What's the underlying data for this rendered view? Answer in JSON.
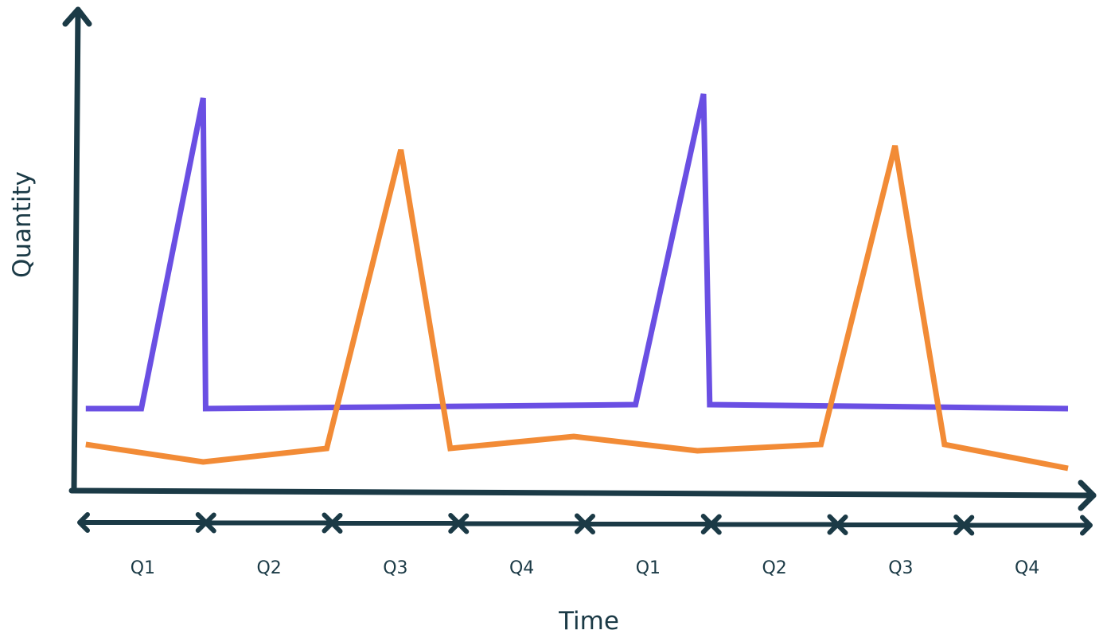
{
  "chart_data": {
    "type": "line",
    "title": "",
    "xlabel": "Time",
    "ylabel": "Quantity",
    "categories": [
      "Q1",
      "Q2",
      "Q3",
      "Q4",
      "Q1",
      "Q2",
      "Q3",
      "Q4"
    ],
    "x": [
      0,
      0.5,
      1,
      1.5,
      2,
      2.5,
      3,
      3.5,
      4,
      4.5,
      5,
      5.5,
      6,
      6.5,
      7,
      7.5,
      8
    ],
    "x_range": [
      0,
      8
    ],
    "y_range": [
      0,
      100
    ],
    "grid": false,
    "legend": "none",
    "series": [
      {
        "color": "#6a4fe3",
        "points": [
          [
            0.05,
            21
          ],
          [
            0.5,
            21
          ],
          [
            1.0,
            99
          ],
          [
            1.02,
            21
          ],
          [
            2.5,
            21.4
          ],
          [
            4.5,
            22
          ],
          [
            5.05,
            100
          ],
          [
            5.1,
            22
          ],
          [
            8.0,
            21
          ]
        ]
      },
      {
        "color": "#f28b36",
        "points": [
          [
            0.05,
            12
          ],
          [
            1.0,
            7.6
          ],
          [
            2.0,
            11
          ],
          [
            2.6,
            86
          ],
          [
            3.0,
            11
          ],
          [
            4.0,
            14
          ],
          [
            5.0,
            10.4
          ],
          [
            6.0,
            12
          ],
          [
            6.6,
            87
          ],
          [
            7.0,
            12
          ],
          [
            8.0,
            6
          ]
        ]
      }
    ]
  },
  "colors": {
    "axis": "#1b3a46",
    "text": "#1b3a46"
  }
}
